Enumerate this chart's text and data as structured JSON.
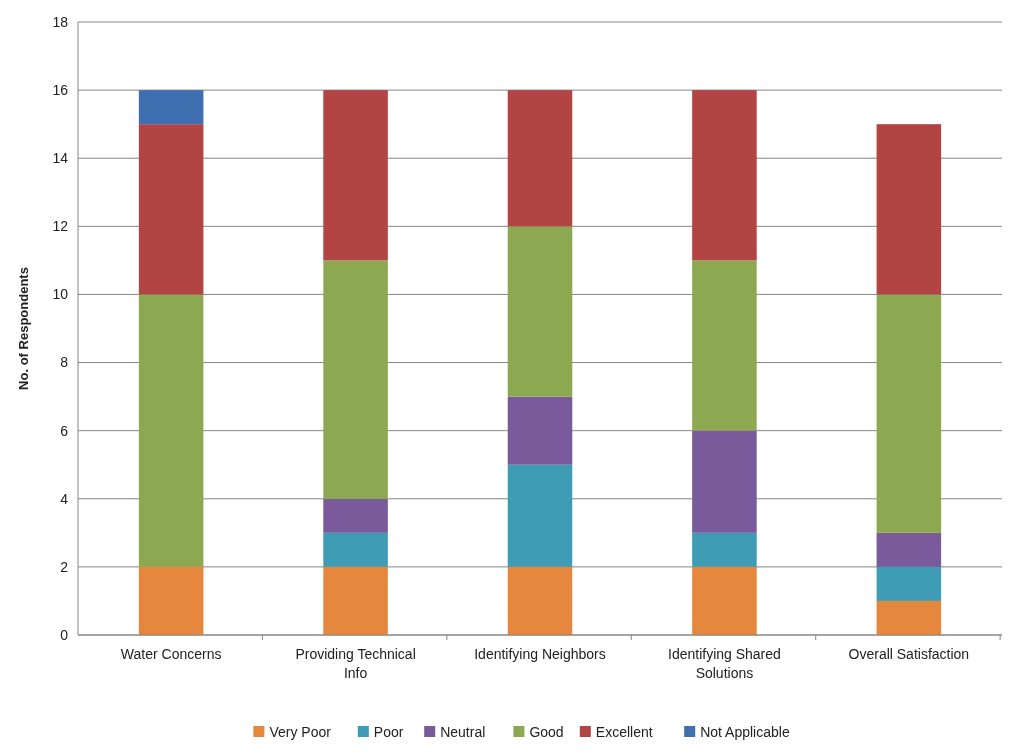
{
  "chart_data": {
    "type": "bar",
    "stacked": true,
    "ylabel": "No. of Respondents",
    "categories": [
      "Water Concerns",
      "Providing Technical Info",
      "Identifying Neighbors",
      "Identifying Shared Solutions",
      "Overall Satisfaction"
    ],
    "series": [
      {
        "name": "Very Poor",
        "color": "#e5873d",
        "values": [
          2,
          2,
          2,
          2,
          1
        ]
      },
      {
        "name": "Poor",
        "color": "#3e9db5",
        "values": [
          0,
          1,
          3,
          1,
          1
        ]
      },
      {
        "name": "Neutral",
        "color": "#7a5a9a",
        "values": [
          0,
          1,
          2,
          3,
          1
        ]
      },
      {
        "name": "Good",
        "color": "#8ca851",
        "values": [
          8,
          7,
          5,
          5,
          7
        ]
      },
      {
        "name": "Excellent",
        "color": "#b24544",
        "values": [
          5,
          5,
          4,
          5,
          5
        ]
      },
      {
        "name": "Not Applicable",
        "color": "#3f6fb0",
        "values": [
          1,
          0,
          0,
          0,
          0
        ]
      }
    ],
    "ylim": [
      0,
      18
    ],
    "yticks": [
      0,
      2,
      4,
      6,
      8,
      10,
      12,
      14,
      16,
      18
    ],
    "grid": "y",
    "legend": "bottom"
  }
}
